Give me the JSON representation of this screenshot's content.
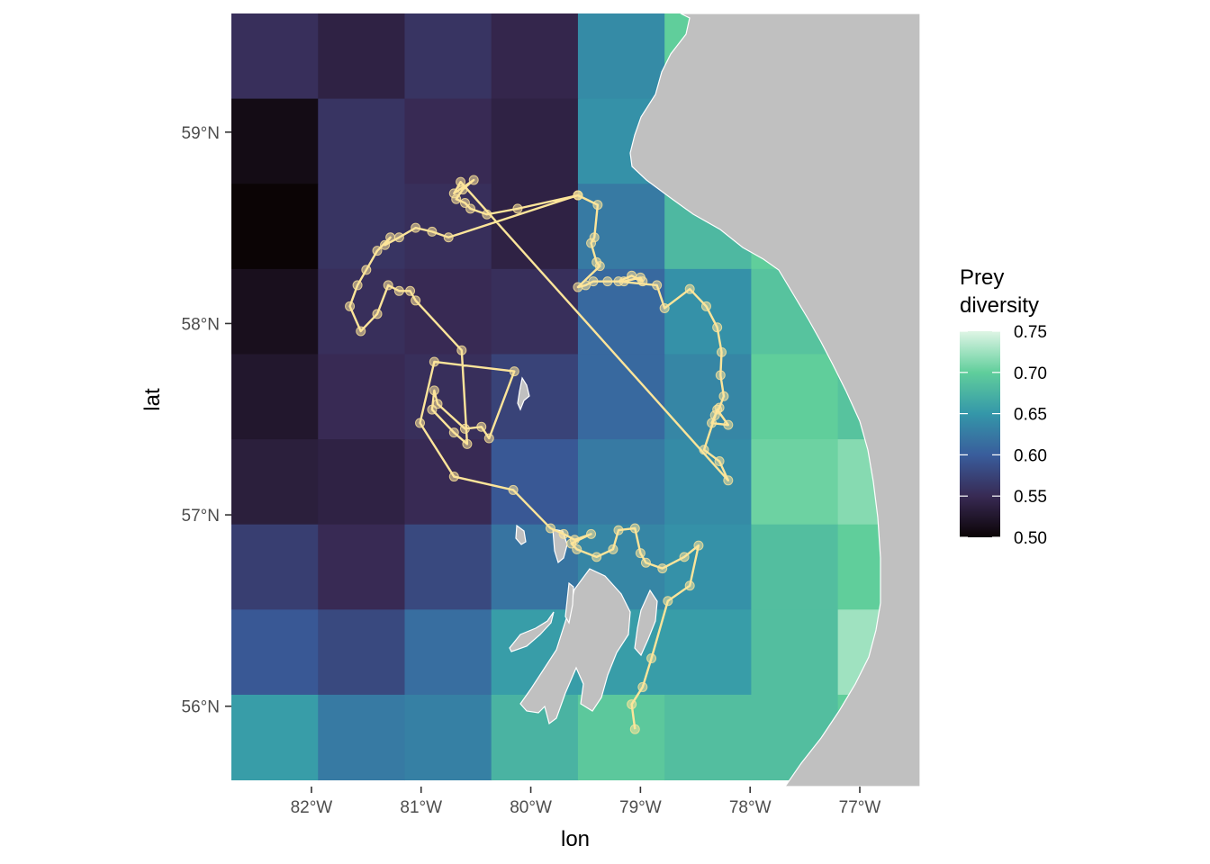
{
  "chart_data": {
    "type": "heatmap",
    "xlabel": "lon",
    "ylabel": "lat",
    "xlim": [
      -82.73,
      -76.45
    ],
    "ylim": [
      55.58,
      59.62
    ],
    "x_ticks": [
      {
        "value": -82,
        "label": "82°W"
      },
      {
        "value": -81,
        "label": "81°W"
      },
      {
        "value": -80,
        "label": "80°W"
      },
      {
        "value": -79,
        "label": "79°W"
      },
      {
        "value": -78,
        "label": "78°W"
      },
      {
        "value": -77,
        "label": "77°W"
      }
    ],
    "y_ticks": [
      {
        "value": 56,
        "label": "56°N"
      },
      {
        "value": 57,
        "label": "57°N"
      },
      {
        "value": 58,
        "label": "58°N"
      },
      {
        "value": 59,
        "label": "59°N"
      }
    ],
    "grid": false,
    "background": "#ffffff",
    "land_color": "#c0c0c0",
    "coast_color": "#ffffff",
    "track_color": "#fde59a",
    "legend": {
      "title": [
        "Prey",
        "diversity"
      ],
      "placement": "right",
      "min": 0.5,
      "max": 0.75,
      "ticks": [
        {
          "value": 0.75,
          "label": "0.75"
        },
        {
          "value": 0.7,
          "label": "0.70"
        },
        {
          "value": 0.65,
          "label": "0.65"
        },
        {
          "value": 0.6,
          "label": "0.60"
        },
        {
          "value": 0.55,
          "label": "0.55"
        },
        {
          "value": 0.5,
          "label": "0.50"
        }
      ],
      "colors": [
        "#0b0405",
        "#382a54",
        "#395d9c",
        "#3497a9",
        "#60ce9b",
        "#def5e5"
      ]
    },
    "grid_cells": {
      "lon_starts": [
        -82.73,
        -81.94,
        -81.15,
        -80.36,
        -79.57,
        -78.78,
        -77.99,
        -77.2
      ],
      "lon_width": 0.79,
      "lat_tops": [
        59.62,
        59.175,
        58.73,
        58.285,
        57.84,
        57.395,
        56.95,
        56.505,
        56.06
      ],
      "lat_height": 0.445,
      "values": [
        [
          0.555,
          0.54,
          0.56,
          0.545,
          0.64,
          0.7,
          null,
          null
        ],
        [
          0.51,
          0.56,
          0.55,
          0.54,
          0.645,
          null,
          null,
          null
        ],
        [
          0.5,
          0.56,
          0.555,
          0.54,
          0.625,
          0.68,
          null,
          null
        ],
        [
          0.515,
          0.555,
          0.55,
          0.555,
          0.61,
          0.645,
          0.69,
          null
        ],
        [
          0.525,
          0.55,
          0.555,
          0.575,
          0.61,
          0.635,
          0.7,
          0.69
        ],
        [
          0.535,
          0.54,
          0.55,
          0.595,
          0.625,
          0.64,
          0.705,
          0.715
        ],
        [
          0.57,
          0.55,
          0.58,
          0.62,
          0.635,
          0.645,
          0.685,
          0.7
        ],
        [
          0.595,
          0.58,
          0.615,
          0.655,
          0.655,
          0.655,
          0.685,
          0.725
        ],
        [
          0.655,
          0.625,
          0.63,
          0.675,
          0.695,
          0.685,
          0.685,
          null
        ]
      ]
    },
    "track": [
      [
        -79.57,
        58.67
      ],
      [
        -79.39,
        58.62
      ],
      [
        -79.42,
        58.45
      ],
      [
        -79.45,
        58.42
      ],
      [
        -79.4,
        58.32
      ],
      [
        -79.37,
        58.3
      ],
      [
        -79.57,
        58.19
      ],
      [
        -79.5,
        58.2
      ],
      [
        -79.43,
        58.22
      ],
      [
        -79.3,
        58.22
      ],
      [
        -79.15,
        58.22
      ],
      [
        -79.0,
        58.24
      ],
      [
        -78.98,
        58.22
      ],
      [
        -79.08,
        58.25
      ],
      [
        -79.2,
        58.22
      ],
      [
        -78.85,
        58.2
      ],
      [
        -78.78,
        58.08
      ],
      [
        -78.55,
        58.18
      ],
      [
        -78.4,
        58.09
      ],
      [
        -78.3,
        57.98
      ],
      [
        -78.26,
        57.85
      ],
      [
        -78.27,
        57.73
      ],
      [
        -78.24,
        57.62
      ],
      [
        -78.28,
        57.56
      ],
      [
        -78.32,
        57.52
      ],
      [
        -78.35,
        57.48
      ],
      [
        -78.2,
        57.47
      ],
      [
        -78.3,
        57.55
      ],
      [
        -78.42,
        57.34
      ],
      [
        -78.28,
        57.28
      ],
      [
        -78.2,
        57.18
      ],
      [
        -80.64,
        58.74
      ],
      [
        -80.7,
        58.68
      ],
      [
        -80.52,
        58.75
      ],
      [
        -80.62,
        58.7
      ],
      [
        -80.68,
        58.65
      ],
      [
        -80.6,
        58.63
      ],
      [
        -80.55,
        58.6
      ],
      [
        -80.4,
        58.57
      ],
      [
        -80.12,
        58.6
      ],
      [
        -79.57,
        58.67
      ],
      [
        -80.75,
        58.45
      ],
      [
        -80.9,
        58.48
      ],
      [
        -81.05,
        58.5
      ],
      [
        -81.2,
        58.45
      ],
      [
        -81.33,
        58.41
      ],
      [
        -81.28,
        58.45
      ],
      [
        -81.4,
        58.38
      ],
      [
        -81.5,
        58.28
      ],
      [
        -81.58,
        58.2
      ],
      [
        -81.65,
        58.09
      ],
      [
        -81.55,
        57.96
      ],
      [
        -81.4,
        58.05
      ],
      [
        -81.3,
        58.2
      ],
      [
        -81.2,
        58.17
      ],
      [
        -81.1,
        58.17
      ],
      [
        -81.05,
        58.12
      ],
      [
        -80.63,
        57.86
      ],
      [
        -80.58,
        57.37
      ],
      [
        -80.7,
        57.43
      ],
      [
        -80.9,
        57.55
      ],
      [
        -80.88,
        57.65
      ],
      [
        -80.85,
        57.58
      ],
      [
        -80.6,
        57.45
      ],
      [
        -80.45,
        57.46
      ],
      [
        -80.38,
        57.4
      ],
      [
        -80.15,
        57.75
      ],
      [
        -80.88,
        57.8
      ],
      [
        -81.01,
        57.48
      ],
      [
        -80.7,
        57.2
      ],
      [
        -80.16,
        57.13
      ],
      [
        -79.82,
        56.93
      ],
      [
        -79.7,
        56.9
      ],
      [
        -79.6,
        56.87
      ],
      [
        -79.45,
        56.9
      ],
      [
        -79.63,
        56.85
      ],
      [
        -79.58,
        56.82
      ],
      [
        -79.4,
        56.78
      ],
      [
        -79.25,
        56.82
      ],
      [
        -79.2,
        56.92
      ],
      [
        -79.05,
        56.93
      ],
      [
        -79.0,
        56.8
      ],
      [
        -78.95,
        56.75
      ],
      [
        -78.8,
        56.72
      ],
      [
        -78.6,
        56.78
      ],
      [
        -78.47,
        56.84
      ],
      [
        -78.55,
        56.63
      ],
      [
        -78.75,
        56.55
      ],
      [
        -78.9,
        56.25
      ],
      [
        -78.98,
        56.1
      ],
      [
        -79.08,
        56.01
      ],
      [
        -79.05,
        55.88
      ]
    ]
  }
}
